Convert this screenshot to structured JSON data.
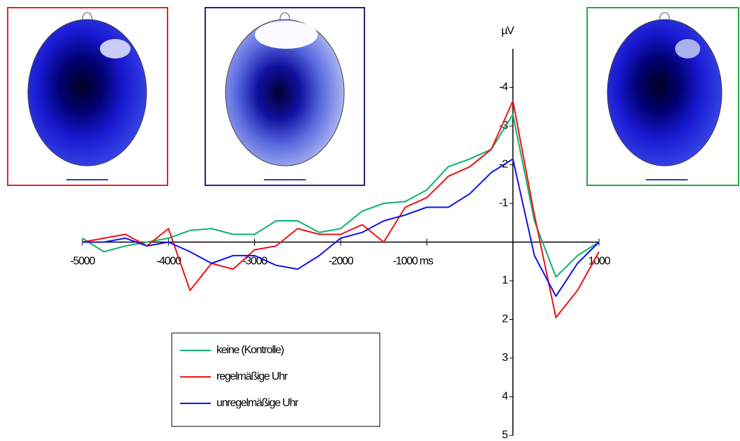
{
  "chart_data": {
    "type": "line",
    "y_label": "µV",
    "x": [
      -5000,
      -4750,
      -4500,
      -4250,
      -4000,
      -3750,
      -3500,
      -3250,
      -3000,
      -2750,
      -2500,
      -2250,
      -2000,
      -1750,
      -1500,
      -1250,
      -1000,
      -750,
      -500,
      -250,
      0,
      250,
      500,
      750,
      1000
    ],
    "xlim": [
      -5000,
      1000
    ],
    "xticks": [
      -5000,
      -4000,
      -3000,
      -2000,
      {
        "value": -1000,
        "label": "-1000 ms"
      },
      1000
    ],
    "ylim": [
      5,
      -5
    ],
    "yticks": [
      -4,
      -3,
      -2,
      -1,
      1,
      2,
      3,
      4,
      5
    ],
    "legend": "lower-left",
    "series": [
      {
        "name": "keine (Kontrolle)",
        "color": "#10b070",
        "values": [
          -0.1,
          0.25,
          0.1,
          0,
          -0.1,
          -0.3,
          -0.35,
          -0.2,
          -0.2,
          -0.55,
          -0.55,
          -0.25,
          -0.35,
          -0.8,
          -1.0,
          -1.05,
          -1.35,
          -1.95,
          -2.15,
          -2.4,
          -3.3,
          -0.55,
          0.9,
          0.35,
          0
        ]
      },
      {
        "name": "regelmäßige Uhr",
        "color": "#ee1111",
        "values": [
          0,
          -0.1,
          -0.2,
          0.1,
          -0.35,
          1.25,
          0.55,
          0.7,
          0.2,
          0.1,
          -0.35,
          -0.2,
          -0.2,
          -0.45,
          0,
          -0.9,
          -1.15,
          -1.7,
          -1.95,
          -2.4,
          -3.65,
          -0.7,
          1.95,
          1.25,
          0.25
        ]
      },
      {
        "name": "unregelmäßige Uhr",
        "color": "#1111ee",
        "values": [
          0,
          0,
          -0.1,
          0.1,
          0,
          0.25,
          0.55,
          0.35,
          0.35,
          0.6,
          0.7,
          0.35,
          -0.1,
          -0.25,
          -0.55,
          -0.7,
          -0.9,
          -0.9,
          -1.25,
          -1.8,
          -2.15,
          0.35,
          1.4,
          0.55,
          0
        ]
      }
    ]
  }
}
